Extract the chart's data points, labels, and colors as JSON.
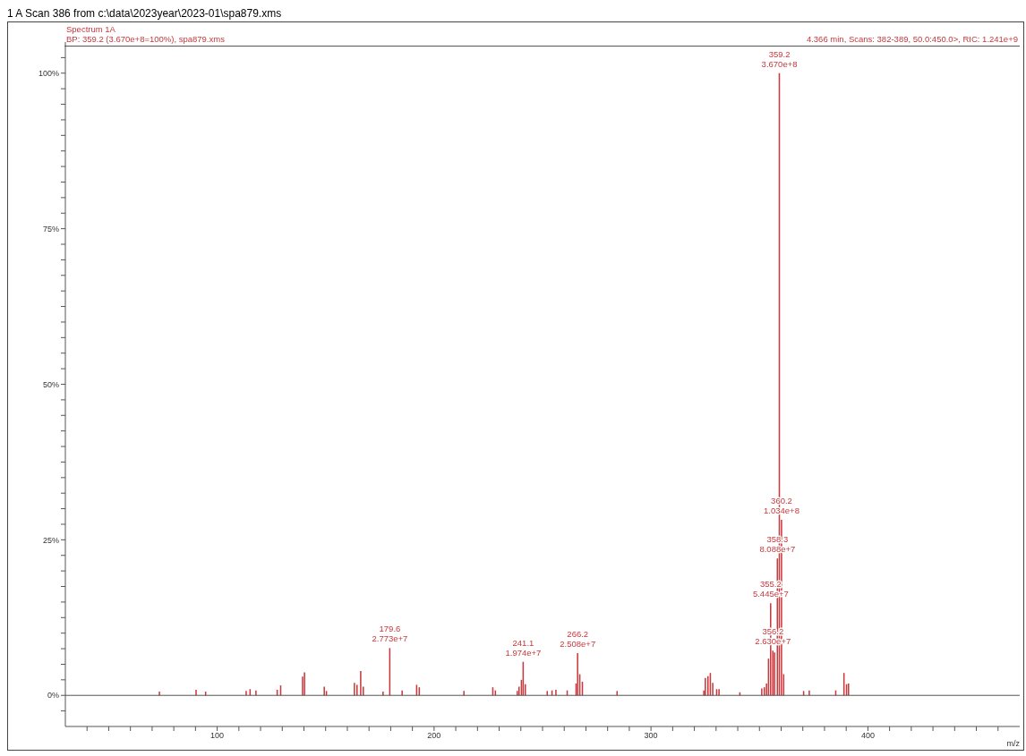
{
  "chart_data": {
    "type": "bar",
    "title": "1 A  Scan 386 from c:\\data\\2023year\\2023-01\\spa879.xms",
    "xlabel": "m/z",
    "x": [
      73.4,
      90.3,
      94.7,
      113.4,
      115.2,
      117.9,
      127.7,
      129.3,
      139.4,
      140.3,
      149.4,
      150.4,
      163.3,
      164.5,
      166.2,
      167.4,
      176.5,
      179.6,
      185.3,
      192.0,
      193.2,
      213.8,
      227.1,
      228.3,
      238.4,
      239.2,
      240.3,
      241.1,
      242.1,
      252.2,
      254.4,
      256.2,
      261.4,
      265.5,
      266.2,
      267.2,
      268.4,
      284.4,
      324.4,
      325.1,
      326.3,
      327.4,
      328.5,
      330.3,
      331.4,
      341.0,
      351.1,
      352.3,
      353.3,
      354.2,
      355.2,
      356.2,
      357.0,
      358.3,
      359.2,
      360.2,
      361.2,
      370.4,
      373.0,
      385.2,
      389.0,
      390.2,
      391.1
    ],
    "values": [
      0.6,
      0.9,
      0.6,
      0.7,
      1.0,
      0.8,
      0.9,
      1.6,
      3.0,
      3.7,
      1.4,
      0.7,
      2.0,
      1.7,
      3.9,
      1.4,
      0.6,
      7.6,
      0.8,
      1.7,
      1.3,
      0.7,
      1.3,
      0.8,
      0.7,
      1.4,
      2.5,
      5.4,
      1.8,
      0.7,
      0.8,
      0.9,
      0.8,
      1.9,
      6.8,
      3.4,
      2.2,
      0.7,
      0.8,
      2.8,
      3.1,
      3.6,
      2.0,
      1.0,
      1.0,
      0.5,
      1.1,
      1.3,
      1.9,
      5.9,
      14.8,
      7.2,
      6.9,
      22.0,
      100,
      28.2,
      3.4,
      0.7,
      0.8,
      0.8,
      3.6,
      1.8,
      1.9
    ],
    "color": "#c8383c",
    "xlim": [
      30,
      470
    ],
    "xticks": [
      {
        "value": 40,
        "label": null
      },
      {
        "value": 50,
        "label": null
      },
      {
        "value": 60,
        "label": null
      },
      {
        "value": 70,
        "label": null
      },
      {
        "value": 80,
        "label": null
      },
      {
        "value": 90,
        "label": null
      },
      100,
      {
        "value": 110,
        "label": null
      },
      {
        "value": 120,
        "label": null
      },
      {
        "value": 130,
        "label": null
      },
      {
        "value": 140,
        "label": null
      },
      {
        "value": 150,
        "label": null
      },
      {
        "value": 160,
        "label": null
      },
      {
        "value": 170,
        "label": null
      },
      {
        "value": 180,
        "label": null
      },
      {
        "value": 190,
        "label": null
      },
      200,
      {
        "value": 210,
        "label": null
      },
      {
        "value": 220,
        "label": null
      },
      {
        "value": 230,
        "label": null
      },
      {
        "value": 240,
        "label": null
      },
      {
        "value": 250,
        "label": null
      },
      {
        "value": 260,
        "label": null
      },
      {
        "value": 270,
        "label": null
      },
      {
        "value": 280,
        "label": null
      },
      {
        "value": 290,
        "label": null
      },
      300,
      {
        "value": 310,
        "label": null
      },
      {
        "value": 320,
        "label": null
      },
      {
        "value": 330,
        "label": null
      },
      {
        "value": 340,
        "label": null
      },
      {
        "value": 350,
        "label": null
      },
      {
        "value": 360,
        "label": null
      },
      {
        "value": 370,
        "label": null
      },
      {
        "value": 380,
        "label": null
      },
      {
        "value": 390,
        "label": null
      },
      400,
      {
        "value": 410,
        "label": null
      },
      {
        "value": 420,
        "label": null
      },
      {
        "value": 430,
        "label": null
      },
      {
        "value": 440,
        "label": null
      },
      {
        "value": 450,
        "label": null
      },
      {
        "value": 460,
        "label": null
      }
    ],
    "ylim": [
      -5,
      105
    ],
    "yticks": [
      {
        "value": -2.5,
        "label": null
      },
      {
        "value": 0,
        "label": "0%"
      },
      {
        "value": 2.5,
        "label": null
      },
      {
        "value": 5,
        "label": null
      },
      {
        "value": 7.5,
        "label": null
      },
      {
        "value": 10,
        "label": null
      },
      {
        "value": 12.5,
        "label": null
      },
      {
        "value": 15,
        "label": null
      },
      {
        "value": 17.5,
        "label": null
      },
      {
        "value": 20,
        "label": null
      },
      {
        "value": 22.5,
        "label": null
      },
      {
        "value": 25,
        "label": "25%"
      },
      {
        "value": 27.5,
        "label": null
      },
      {
        "value": 30,
        "label": null
      },
      {
        "value": 32.5,
        "label": null
      },
      {
        "value": 35,
        "label": null
      },
      {
        "value": 37.5,
        "label": null
      },
      {
        "value": 40,
        "label": null
      },
      {
        "value": 42.5,
        "label": null
      },
      {
        "value": 45,
        "label": null
      },
      {
        "value": 47.5,
        "label": null
      },
      {
        "value": 50,
        "label": "50%"
      },
      {
        "value": 52.5,
        "label": null
      },
      {
        "value": 55,
        "label": null
      },
      {
        "value": 57.5,
        "label": null
      },
      {
        "value": 60,
        "label": null
      },
      {
        "value": 62.5,
        "label": null
      },
      {
        "value": 65,
        "label": null
      },
      {
        "value": 67.5,
        "label": null
      },
      {
        "value": 70,
        "label": null
      },
      {
        "value": 72.5,
        "label": null
      },
      {
        "value": 75,
        "label": "75%"
      },
      {
        "value": 77.5,
        "label": null
      },
      {
        "value": 80,
        "label": null
      },
      {
        "value": 82.5,
        "label": null
      },
      {
        "value": 85,
        "label": null
      },
      {
        "value": 87.5,
        "label": null
      },
      {
        "value": 90,
        "label": null
      },
      {
        "value": 92.5,
        "label": null
      },
      {
        "value": 95,
        "label": null
      },
      {
        "value": 97.5,
        "label": null
      },
      {
        "value": 100,
        "label": "100%"
      },
      {
        "value": 102.5,
        "label": null
      }
    ],
    "ref_lines": [
      {
        "axis": "y",
        "value": 0,
        "color": "#555555"
      }
    ],
    "annotations": [
      "Spectrum 1A",
      "BP: 359.2 (3.670e+8=100%), spa879.xms",
      "4.366 min, Scans: 382-389, 50.0:450.0>, RIC: 1.241e+9",
      {
        "text": "359.2\n3.670e+8",
        "x": 359.2,
        "y": 100
      },
      {
        "text": "360.2\n1.034e+8",
        "x": 360.2,
        "y": 28.2
      },
      {
        "text": "358.3\n8.088e+7",
        "x": 358.3,
        "y": 22.0
      },
      {
        "text": "355.2\n5.445e+7",
        "x": 355.2,
        "y": 14.8
      },
      {
        "text": "356.2\n2.630e+7",
        "x": 356.2,
        "y": 7.2
      },
      {
        "text": "179.6\n2.773e+7",
        "x": 179.6,
        "y": 7.6
      },
      {
        "text": "241.1\n1.974e+7",
        "x": 241.1,
        "y": 5.4
      },
      {
        "text": "266.2\n2.508e+7",
        "x": 266.2,
        "y": 6.8
      }
    ]
  }
}
